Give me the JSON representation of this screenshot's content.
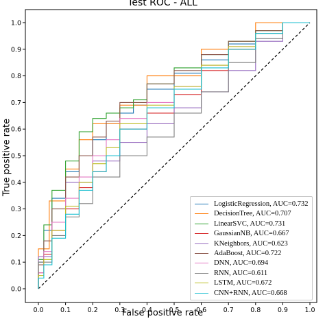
{
  "chart_data": {
    "type": "line",
    "title": "Test ROC - ALL",
    "xlabel": "False positive rate",
    "ylabel": "True positive rate",
    "xlim": [
      0.0,
      1.0
    ],
    "ylim": [
      0.0,
      1.0
    ],
    "xticks": [
      "0.0",
      "0.1",
      "0.2",
      "0.3",
      "0.4",
      "0.5",
      "0.6",
      "0.7",
      "0.8",
      "0.9",
      "1.0"
    ],
    "yticks": [
      "0.0",
      "0.1",
      "0.2",
      "0.3",
      "0.4",
      "0.5",
      "0.6",
      "0.7",
      "0.8",
      "0.9",
      "1.0"
    ],
    "grid": false,
    "legend_position": "lower-right",
    "chance_line": {
      "style": "dashed",
      "color": "#000000",
      "x": [
        0,
        1
      ],
      "y": [
        0,
        1
      ]
    },
    "series": [
      {
        "name": "LogisticRegression, AUC=0.732",
        "color": "#1f77b4",
        "x": [
          0,
          0.02,
          0.05,
          0.1,
          0.15,
          0.2,
          0.25,
          0.3,
          0.35,
          0.4,
          0.5,
          0.6,
          0.7,
          0.8,
          0.9,
          1.0
        ],
        "y": [
          0,
          0.1,
          0.22,
          0.34,
          0.44,
          0.5,
          0.56,
          0.62,
          0.66,
          0.69,
          0.75,
          0.81,
          0.86,
          0.92,
          0.96,
          1.0
        ]
      },
      {
        "name": "DecisionTree, AUC=0.707",
        "color": "#ff7f0e",
        "x": [
          0,
          0.04,
          0.1,
          0.15,
          0.2,
          0.3,
          0.4,
          0.6,
          0.8,
          1.0
        ],
        "y": [
          0,
          0.15,
          0.33,
          0.45,
          0.56,
          0.62,
          0.69,
          0.8,
          0.9,
          1.0
        ]
      },
      {
        "name": "LinearSVC, AUC=0.731",
        "color": "#2ca02c",
        "x": [
          0,
          0.02,
          0.05,
          0.1,
          0.15,
          0.2,
          0.25,
          0.3,
          0.35,
          0.4,
          0.5,
          0.6,
          0.7,
          0.8,
          0.9,
          1.0
        ],
        "y": [
          0,
          0.11,
          0.24,
          0.37,
          0.48,
          0.59,
          0.64,
          0.66,
          0.68,
          0.71,
          0.77,
          0.83,
          0.88,
          0.93,
          0.97,
          1.0
        ]
      },
      {
        "name": "GaussianNB, AUC=0.667",
        "color": "#d62728",
        "x": [
          0,
          0.02,
          0.05,
          0.1,
          0.15,
          0.2,
          0.25,
          0.3,
          0.4,
          0.5,
          0.6,
          0.7,
          0.8,
          0.9,
          1.0
        ],
        "y": [
          0,
          0.06,
          0.13,
          0.22,
          0.3,
          0.38,
          0.44,
          0.5,
          0.6,
          0.66,
          0.73,
          0.82,
          0.9,
          0.96,
          1.0
        ]
      },
      {
        "name": "KNeighbors, AUC=0.623",
        "color": "#9467bd",
        "x": [
          0,
          0.05,
          0.1,
          0.2,
          0.3,
          0.4,
          0.5,
          0.6,
          0.7,
          0.8,
          0.9,
          1.0
        ],
        "y": [
          0,
          0.12,
          0.25,
          0.4,
          0.48,
          0.55,
          0.62,
          0.68,
          0.74,
          0.82,
          0.93,
          1.0
        ]
      },
      {
        "name": "AdaBoost, AUC=0.722",
        "color": "#8c564b",
        "x": [
          0,
          0.02,
          0.05,
          0.1,
          0.15,
          0.2,
          0.25,
          0.3,
          0.4,
          0.5,
          0.6,
          0.7,
          0.8,
          0.9,
          1.0
        ],
        "y": [
          0,
          0.09,
          0.18,
          0.3,
          0.42,
          0.5,
          0.57,
          0.63,
          0.7,
          0.77,
          0.82,
          0.88,
          0.93,
          0.97,
          1.0
        ]
      },
      {
        "name": "DNN, AUC=0.694",
        "color": "#e377c2",
        "x": [
          0,
          0.02,
          0.05,
          0.1,
          0.15,
          0.2,
          0.25,
          0.3,
          0.4,
          0.5,
          0.6,
          0.7,
          0.8,
          0.9,
          1.0
        ],
        "y": [
          0,
          0.06,
          0.14,
          0.25,
          0.34,
          0.42,
          0.5,
          0.56,
          0.64,
          0.7,
          0.76,
          0.84,
          0.91,
          0.96,
          1.0
        ]
      },
      {
        "name": "RNN, AUC=0.611",
        "color": "#7f7f7f",
        "x": [
          0,
          0.05,
          0.1,
          0.15,
          0.2,
          0.3,
          0.4,
          0.5,
          0.6,
          0.7,
          0.8,
          0.9,
          1.0
        ],
        "y": [
          0,
          0.1,
          0.2,
          0.27,
          0.32,
          0.42,
          0.5,
          0.57,
          0.66,
          0.74,
          0.85,
          0.94,
          1.0
        ]
      },
      {
        "name": "LSTM, AUC=0.672",
        "color": "#bcbd22",
        "x": [
          0,
          0.02,
          0.05,
          0.1,
          0.15,
          0.2,
          0.25,
          0.3,
          0.4,
          0.5,
          0.6,
          0.7,
          0.8,
          0.9,
          1.0
        ],
        "y": [
          0,
          0.05,
          0.11,
          0.22,
          0.31,
          0.4,
          0.47,
          0.53,
          0.62,
          0.69,
          0.76,
          0.84,
          0.91,
          0.96,
          1.0
        ]
      },
      {
        "name": "CNN+RNN, AUC=0.668",
        "color": "#17becf",
        "x": [
          0,
          0.02,
          0.05,
          0.1,
          0.15,
          0.2,
          0.25,
          0.3,
          0.4,
          0.5,
          0.6,
          0.7,
          0.8,
          0.9,
          1.0
        ],
        "y": [
          0,
          0.04,
          0.09,
          0.19,
          0.28,
          0.37,
          0.44,
          0.5,
          0.6,
          0.68,
          0.75,
          0.83,
          0.9,
          0.96,
          1.0
        ]
      }
    ]
  }
}
